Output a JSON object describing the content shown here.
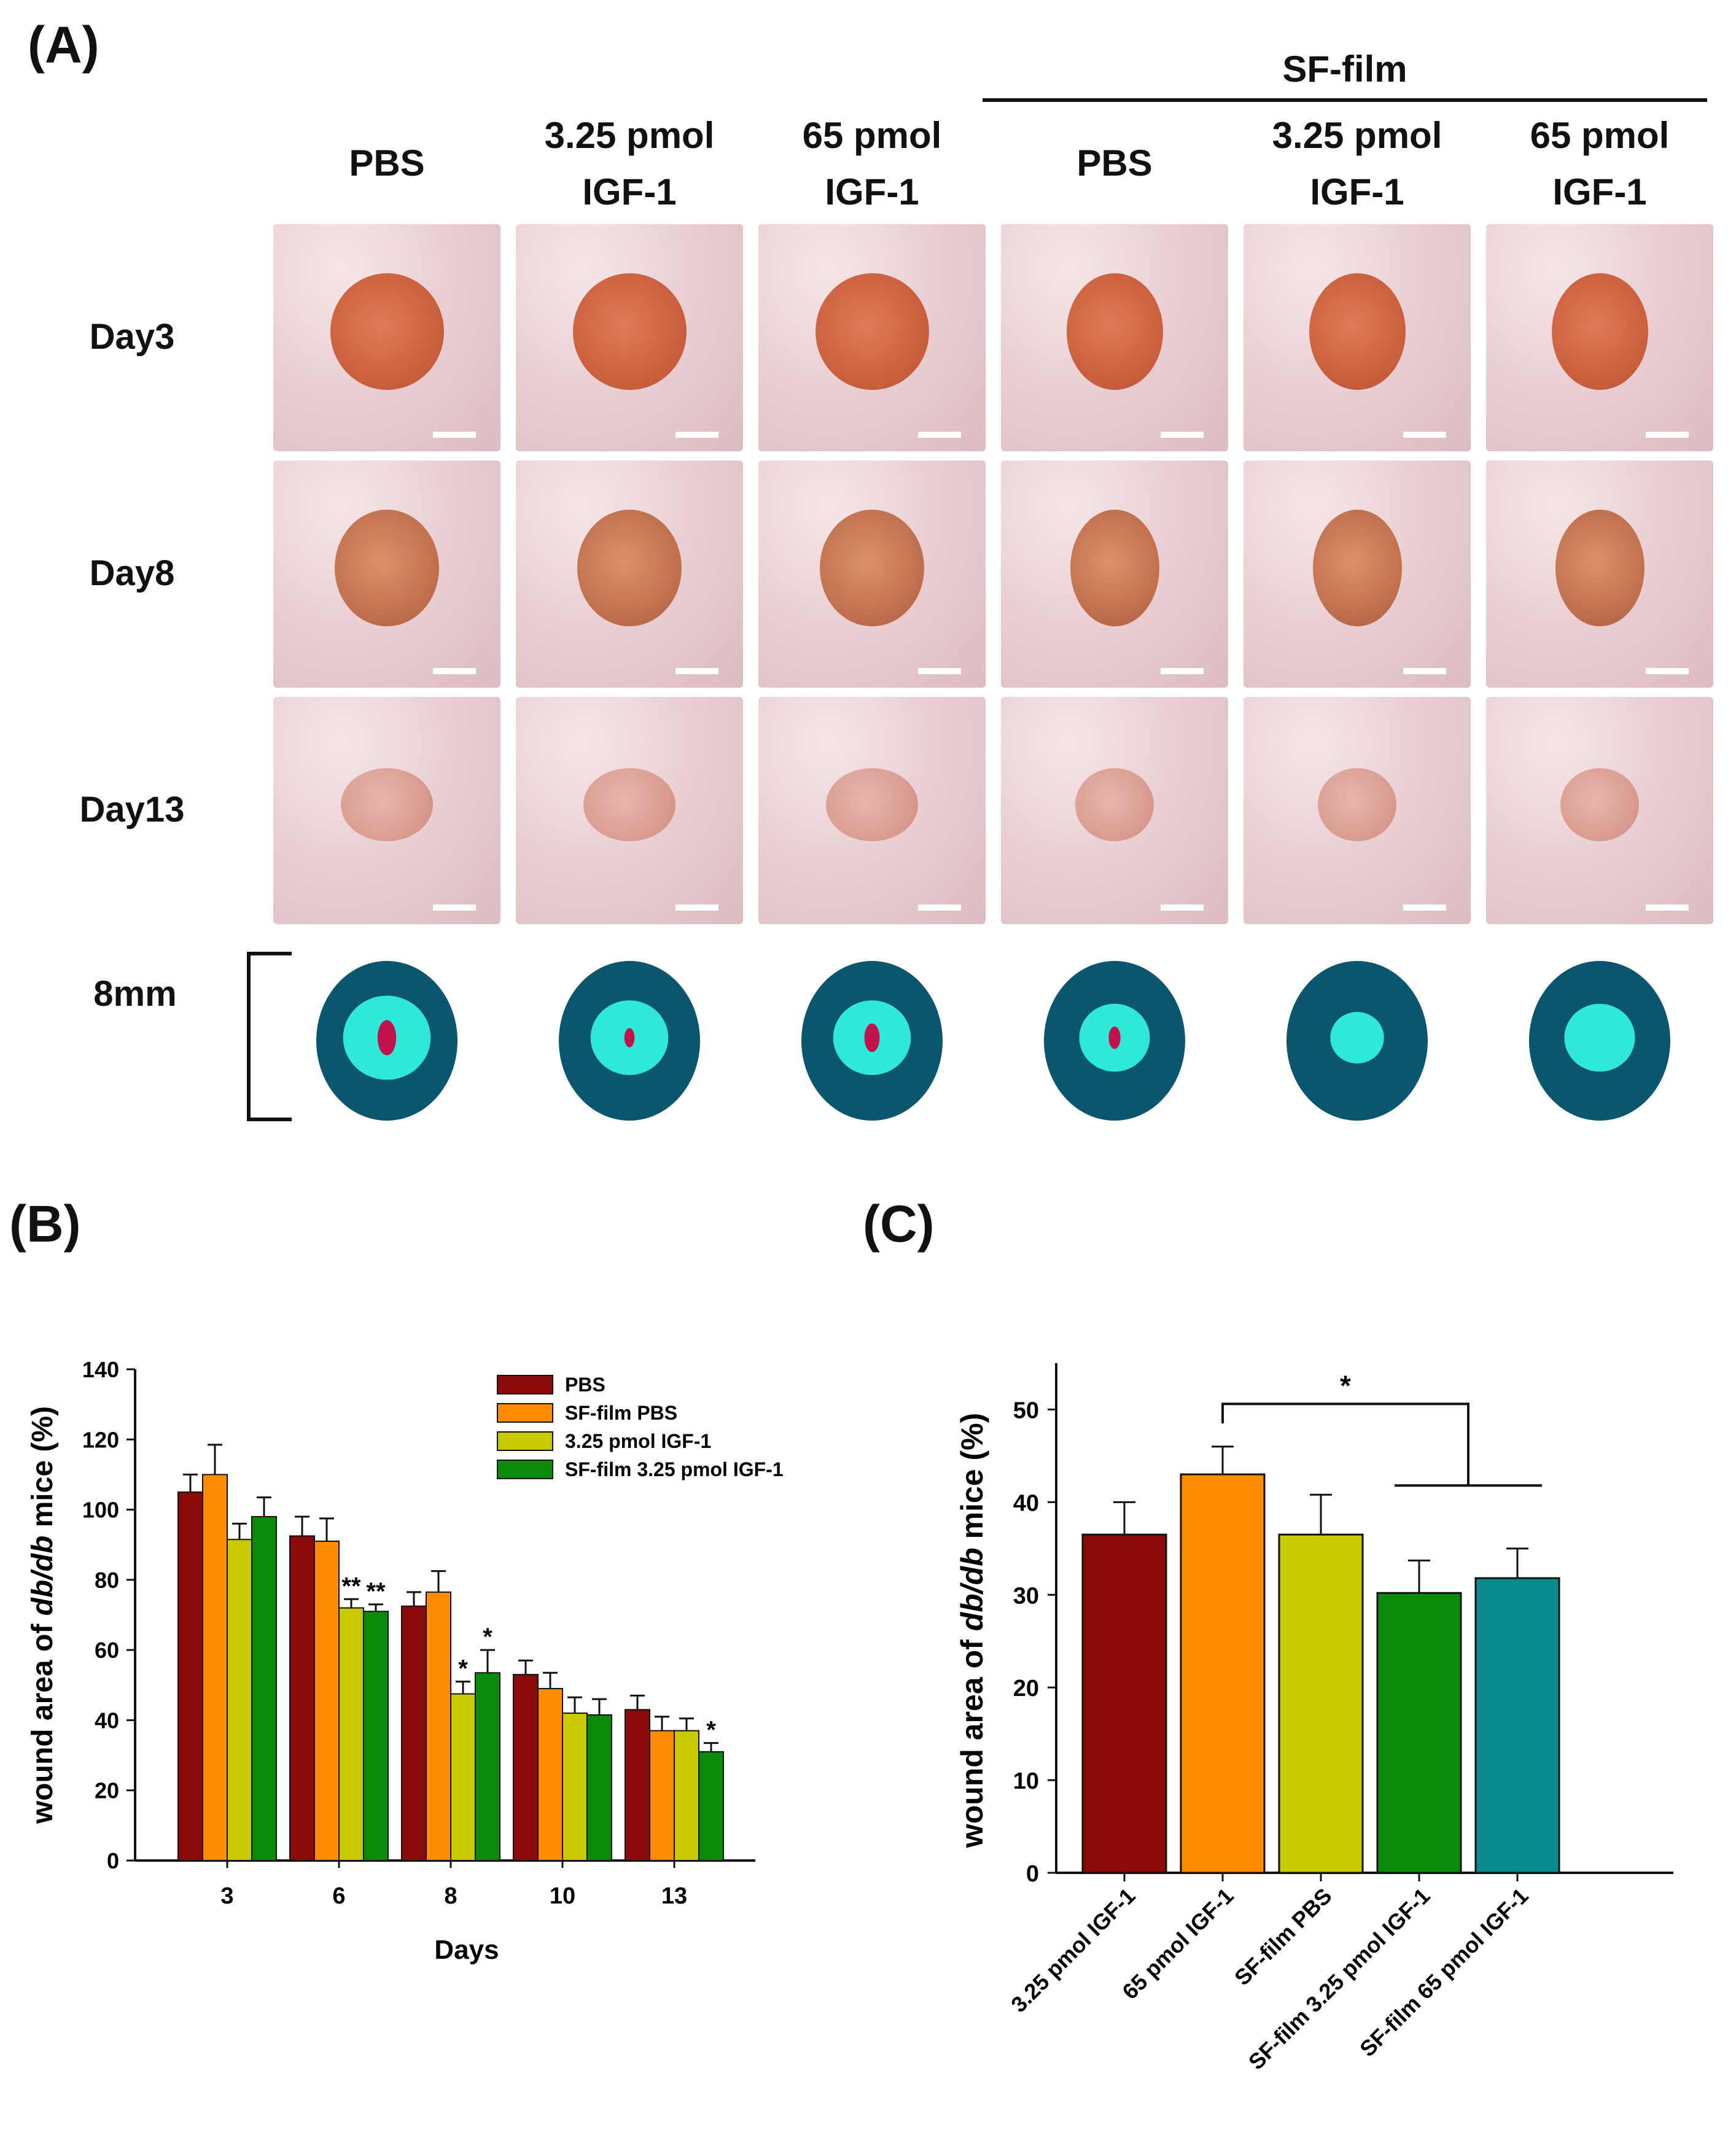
{
  "panel_a": {
    "label": "(A)",
    "group_label": "SF-film",
    "columns": [
      {
        "line1": "",
        "line2": "PBS"
      },
      {
        "line1": "3.25 pmol",
        "line2": "IGF-1"
      },
      {
        "line1": "65 pmol",
        "line2": "IGF-1"
      },
      {
        "line1": "",
        "line2": "PBS"
      },
      {
        "line1": "3.25 pmol",
        "line2": "IGF-1"
      },
      {
        "line1": "65 pmol",
        "line2": "IGF-1"
      }
    ],
    "rows": [
      "Day3",
      "Day8",
      "Day13"
    ],
    "map_label": "8mm",
    "colors": {
      "outer": "#0b566f",
      "inner": "#2fe8d8",
      "core": "#c2124e"
    }
  },
  "panel_b": {
    "label": "(B)"
  },
  "panel_c": {
    "label": "(C)"
  },
  "chart_data": [
    {
      "id": "B",
      "type": "bar",
      "title": "",
      "xlabel": "Days",
      "ylabel_parts": [
        "wound area of ",
        "db/db",
        " mice (%)"
      ],
      "categories": [
        "3",
        "6",
        "8",
        "10",
        "13"
      ],
      "ylim": [
        0,
        140
      ],
      "yticks": [
        0,
        20,
        40,
        60,
        80,
        100,
        120,
        140
      ],
      "legend_position": "top-right",
      "series": [
        {
          "name": "PBS",
          "color": "#8b0a0a",
          "values": [
            105,
            92.5,
            72.5,
            53,
            43
          ],
          "errors": [
            5,
            5.5,
            4,
            4,
            4
          ]
        },
        {
          "name": "SF-film PBS",
          "color": "#ff8c00",
          "values": [
            110,
            91,
            76.5,
            49,
            37
          ],
          "errors": [
            8.5,
            6.5,
            6,
            4.5,
            4
          ]
        },
        {
          "name": "3.25 pmol IGF-1",
          "color": "#c9c900",
          "values": [
            91.5,
            72,
            47.5,
            42,
            37
          ],
          "errors": [
            4.5,
            2.5,
            3.5,
            4.5,
            3.5
          ]
        },
        {
          "name": "SF-film 3.25 pmol IGF-1",
          "color": "#0a8a0a",
          "values": [
            98,
            71,
            53.5,
            41.5,
            31
          ],
          "errors": [
            5.5,
            2,
            6.5,
            4.5,
            2.5
          ]
        }
      ],
      "annotations": [
        {
          "category": "6",
          "series": 2,
          "text": "**"
        },
        {
          "category": "6",
          "series": 3,
          "text": "**"
        },
        {
          "category": "8",
          "series": 2,
          "text": "*"
        },
        {
          "category": "8",
          "series": 3,
          "text": "*"
        },
        {
          "category": "13",
          "series": 3,
          "text": "*"
        }
      ]
    },
    {
      "id": "C",
      "type": "bar",
      "title": "",
      "xlabel": "",
      "ylabel_parts": [
        "wound area of ",
        "db/db",
        " mice (%)"
      ],
      "categories": [
        "3.25 pmol IGF-1",
        "65 pmol IGF-1",
        "SF-film PBS",
        "SF-film 3.25 pmol IGF-1",
        "SF-film 65 pmol IGF-1"
      ],
      "values": [
        36.5,
        43,
        36.5,
        30.2,
        31.8
      ],
      "errors": [
        3.5,
        3,
        4.3,
        3.5,
        3.2
      ],
      "colors": [
        "#8b0a0a",
        "#ff8c00",
        "#c9c900",
        "#0a8a0a",
        "#0a8a8a"
      ],
      "ylim": [
        0,
        55
      ],
      "yticks": [
        0,
        10,
        20,
        30,
        40,
        50
      ],
      "significance": {
        "text": "*",
        "from": 1,
        "to": [
          3,
          4
        ]
      }
    }
  ]
}
